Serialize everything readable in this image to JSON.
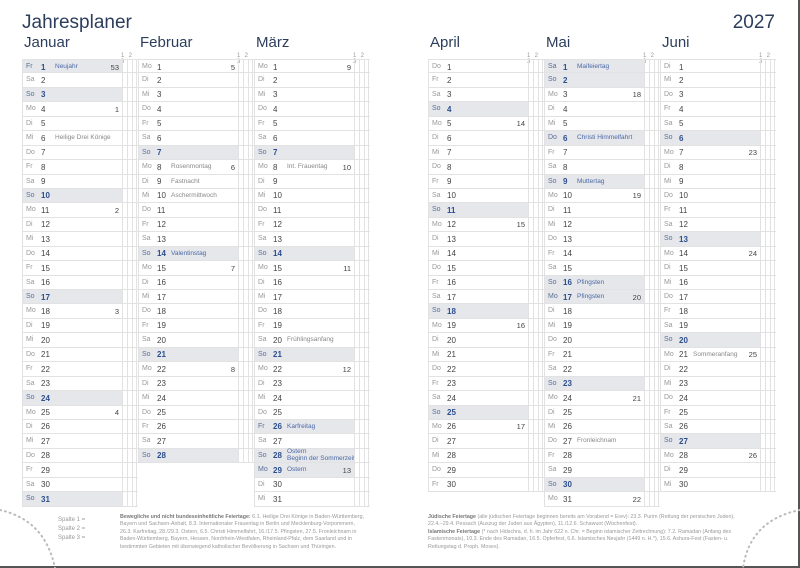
{
  "header": {
    "title": "Jahresplaner",
    "year": "2027"
  },
  "weekday_names": [
    "Mo",
    "Di",
    "Mi",
    "Do",
    "Fr",
    "Sa",
    "So"
  ],
  "column_header": "1 2 3",
  "months": [
    {
      "name": "Januar",
      "days": 31,
      "first_weekday": 4,
      "holidays": [
        1
      ],
      "events": {
        "1": "Neujahr",
        "6": "Heilige Drei Könige"
      },
      "weeks": {
        "1": 53,
        "4": 1,
        "11": 2,
        "18": 3,
        "25": 4
      }
    },
    {
      "name": "Februar",
      "days": 28,
      "first_weekday": 0,
      "holidays": [],
      "events": {
        "8": "Rosenmontag",
        "9": "Fastnacht",
        "10": "Aschermittwoch",
        "14": "Valentinstag"
      },
      "weeks": {
        "1": 5,
        "8": 6,
        "15": 7,
        "22": 8
      }
    },
    {
      "name": "März",
      "days": 31,
      "first_weekday": 0,
      "holidays": [
        26,
        28,
        29
      ],
      "events": {
        "8": "Int. Frauentag",
        "20": "Frühlingsanfang",
        "26": "Karfreitag",
        "28": "Ostern|Beginn der Sommerzeit",
        "29": "Ostern"
      },
      "weeks": {
        "1": 9,
        "8": 10,
        "15": 11,
        "22": 12,
        "29": 13
      }
    },
    {
      "name": "April",
      "days": 30,
      "first_weekday": 3,
      "holidays": [],
      "events": {},
      "weeks": {
        "5": 14,
        "12": 15,
        "19": 16,
        "26": 17
      }
    },
    {
      "name": "Mai",
      "days": 31,
      "first_weekday": 5,
      "holidays": [
        1,
        6,
        16,
        17
      ],
      "events": {
        "1": "Maifeiertag",
        "6": "Christi Himmelfahrt",
        "9": "Muttertag",
        "16": "Pfingsten",
        "17": "Pfingsten",
        "27": "Fronleichnam"
      },
      "weeks": {
        "3": 18,
        "10": 19,
        "17": 20,
        "24": 21,
        "31": 22
      }
    },
    {
      "name": "Juni",
      "days": 30,
      "first_weekday": 1,
      "holidays": [],
      "events": {
        "21": "Sommeranfang"
      },
      "weeks": {
        "7": 23,
        "14": 24,
        "21": 25,
        "28": 26
      }
    }
  ],
  "legend": [
    "Spalte 1 =",
    "Spalte 2 =",
    "Spalte 3 ="
  ],
  "notes": {
    "left_label": "Bewegliche und nicht bundeseinheitliche Feiertage:",
    "left_text": " 6.1. Heilige Drei Könige in Baden-Württemberg, Bayern und Sachsen-Anhalt, 8.3. Internationaler Frauentag in Berlin und Mecklenburg-Vorpommern, 26.3. Karfreitag, 28./29.3. Ostern, 6.5. Christi Himmelfahrt, 16./17.5. Pfingsten, 27.5. Fronleichnam in Baden-Württemberg, Bayern, Hessen, Nordrhein-Westfalen, Rheinland-Pfalz, dem Saarland und in bestimmten Gebieten mit überwiegend katholischer Bevölkerung in Sachsen und Thüringen.",
    "jewish_label": "Jüdische Feiertage",
    "jewish_text": " (alle jüdischen Feiertage beginnen bereits am Vorabend = Erev): 23.3. Purim (Rettung der persischen Juden), 22.4.–29.4. Pessach (Auszug der Juden aus Ägypten), 11./12.6. Schawuot (Wochenfest).",
    "islamic_label": "Islamische Feiertage",
    "islamic_text": " (* nach Hidschra, d. h. im Jahr 622 n. Chr. = Beginn islamischer Zeitrechnung): 7.2. Ramadan (Anfang des Fastenmonats), 10.3. Ende des Ramadan, 16.5. Opferfest, 6.6. Islamisches Neujahr (1449 n. H.*), 15.6. Ashura-Fest (Fasten- u. Rettungstag d. Proph. Moses)."
  }
}
